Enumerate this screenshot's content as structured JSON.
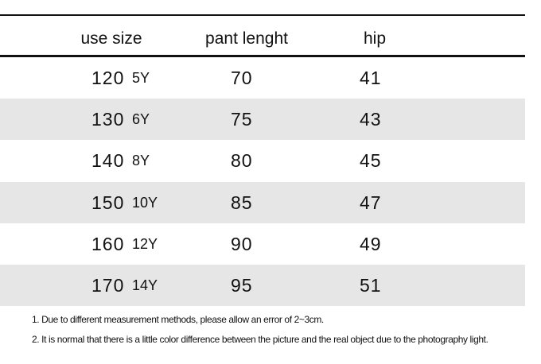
{
  "table": {
    "header": [
      "use size",
      "pant lenght",
      "hip"
    ],
    "rows": [
      [
        120,
        "5Y",
        70,
        41
      ],
      [
        130,
        "6Y",
        75,
        43
      ],
      [
        140,
        "8Y",
        80,
        45
      ],
      [
        150,
        "10Y",
        85,
        47
      ],
      [
        160,
        "12Y",
        90,
        49
      ],
      [
        170,
        "14Y",
        95,
        51
      ]
    ]
  },
  "notes": [
    "1. Due to different measurement methods, please allow an error of 2~3cm.",
    "2. It is normal that there is a little color difference between the picture and the real object due to the photography light."
  ]
}
